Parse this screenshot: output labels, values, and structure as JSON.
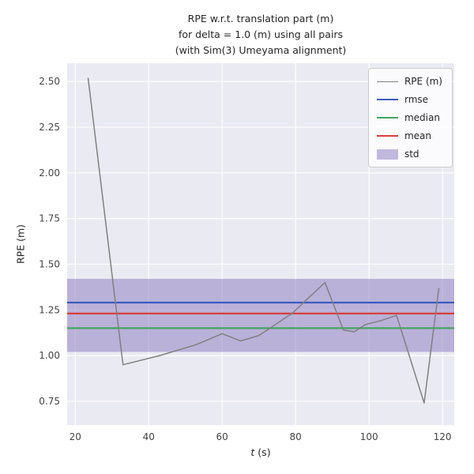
{
  "chart_data": {
    "type": "line",
    "title_lines": [
      "RPE w.r.t. translation part (m)",
      "for delta = 1.0 (m) using all pairs",
      "(with Sim(3) Umeyama alignment)"
    ],
    "xlabel": {
      "var": "t",
      "rest": " (s)"
    },
    "ylabel": "RPE (m)",
    "xlim": [
      17.8,
      123.2
    ],
    "ylim": [
      0.62,
      2.6
    ],
    "xticks": [
      20,
      40,
      60,
      80,
      100,
      120
    ],
    "yticks": [
      0.75,
      1.0,
      1.25,
      1.5,
      1.75,
      2.0,
      2.25,
      2.5
    ],
    "grid": true,
    "legend_position": "upper right",
    "series": [
      {
        "name": "RPE (m)",
        "kind": "line",
        "color": "#808080",
        "width": 1.5,
        "x": [
          23.5,
          33,
          43,
          53,
          60,
          65,
          70,
          79,
          88,
          93,
          96,
          99,
          103,
          107.5,
          115,
          119
        ],
        "y": [
          2.52,
          0.95,
          1.0,
          1.06,
          1.12,
          1.08,
          1.11,
          1.23,
          1.4,
          1.14,
          1.13,
          1.17,
          1.19,
          1.22,
          0.74,
          1.37
        ]
      },
      {
        "name": "rmse",
        "kind": "hline",
        "color": "#3b5bbf",
        "width": 2.2,
        "value": 1.29
      },
      {
        "name": "median",
        "kind": "hline",
        "color": "#44a55e",
        "width": 2.2,
        "value": 1.15
      },
      {
        "name": "mean",
        "kind": "hline",
        "color": "#d9403a",
        "width": 2.2,
        "value": 1.23
      },
      {
        "name": "std",
        "kind": "band",
        "color": "#9181c4",
        "opacity": 0.55,
        "range": [
          1.02,
          1.42
        ]
      }
    ]
  },
  "colors": {
    "figure_bg": "#ffffff",
    "plot_bg": "#eaeaf2",
    "grid": "#ffffff",
    "text": "#262626",
    "tick_text": "#444444",
    "legend_bg": "#fdfdfe",
    "legend_border": "#cccccc"
  }
}
